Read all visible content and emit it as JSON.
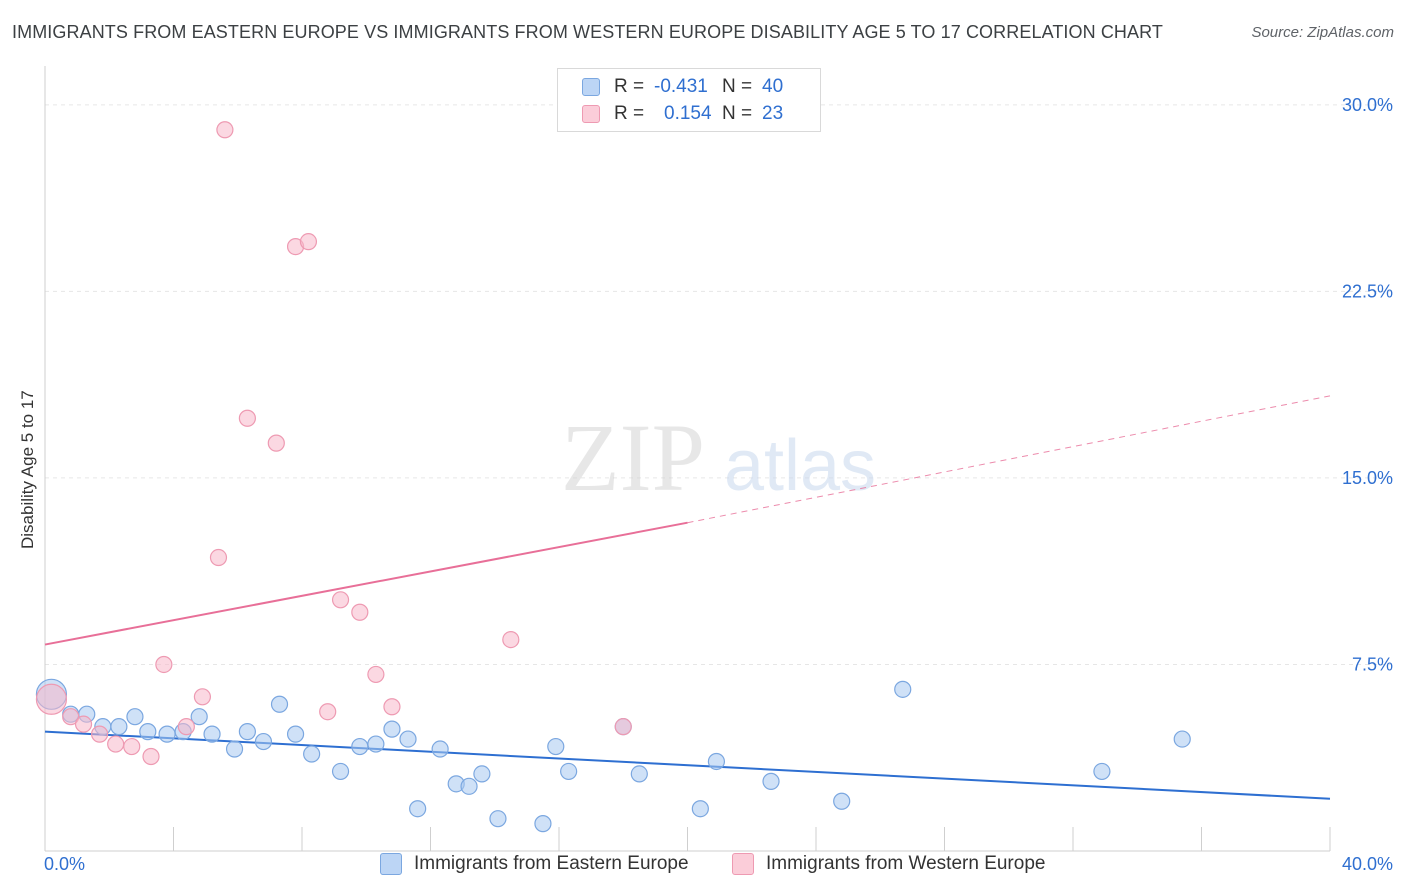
{
  "title": "IMMIGRANTS FROM EASTERN EUROPE VS IMMIGRANTS FROM WESTERN EUROPE DISABILITY AGE 5 TO 17 CORRELATION CHART",
  "source": "Source: ZipAtlas.com",
  "watermark": {
    "zip": "ZIP",
    "atlas": "atlas"
  },
  "legend": {
    "rows": [
      {
        "r_label": "R =",
        "r_value": "-0.431",
        "n_label": "N =",
        "n_value": "40"
      },
      {
        "r_label": "R =",
        "r_value": "0.154",
        "n_label": "N =",
        "n_value": "23"
      }
    ]
  },
  "colors": {
    "blue_fill": "#a8c8f0",
    "blue_stroke": "#7ba7e0",
    "blue_line": "#2e6fd1",
    "pink_fill": "#f7b8cb",
    "pink_stroke": "#ee9ab2",
    "pink_line": "#e86f98",
    "tick_label": "#2f6fd0",
    "grid": "#e6e6e6"
  },
  "chart_data": {
    "type": "scatter",
    "title": "IMMIGRANTS FROM EASTERN EUROPE VS IMMIGRANTS FROM WESTERN EUROPE DISABILITY AGE 5 TO 17 CORRELATION CHART",
    "xlabel": "",
    "ylabel": "Disability Age 5 to 17",
    "xlim": [
      0,
      40
    ],
    "ylim": [
      0,
      31
    ],
    "x_tick_labels": [
      {
        "value": 0,
        "label": "0.0%"
      },
      {
        "value": 40,
        "label": "40.0%"
      }
    ],
    "y_tick_labels": [
      {
        "value": 7.5,
        "label": "7.5%"
      },
      {
        "value": 15.0,
        "label": "15.0%"
      },
      {
        "value": 22.5,
        "label": "22.5%"
      },
      {
        "value": 30.0,
        "label": "30.0%"
      }
    ],
    "series": [
      {
        "name": "Immigrants from Eastern Europe",
        "color": "#a8c8f0",
        "points": [
          {
            "x": 0.2,
            "y": 6.3,
            "big": true
          },
          {
            "x": 0.8,
            "y": 5.5
          },
          {
            "x": 1.3,
            "y": 5.5
          },
          {
            "x": 1.8,
            "y": 5.0
          },
          {
            "x": 2.3,
            "y": 5.0
          },
          {
            "x": 2.8,
            "y": 5.4
          },
          {
            "x": 3.2,
            "y": 4.8
          },
          {
            "x": 3.8,
            "y": 4.7
          },
          {
            "x": 4.3,
            "y": 4.8
          },
          {
            "x": 4.8,
            "y": 5.4
          },
          {
            "x": 5.2,
            "y": 4.7
          },
          {
            "x": 5.9,
            "y": 4.1
          },
          {
            "x": 6.3,
            "y": 4.8
          },
          {
            "x": 6.8,
            "y": 4.4
          },
          {
            "x": 7.3,
            "y": 5.9
          },
          {
            "x": 7.8,
            "y": 4.7
          },
          {
            "x": 8.3,
            "y": 3.9
          },
          {
            "x": 9.2,
            "y": 3.2
          },
          {
            "x": 9.8,
            "y": 4.2
          },
          {
            "x": 10.3,
            "y": 4.3
          },
          {
            "x": 10.8,
            "y": 4.9
          },
          {
            "x": 11.3,
            "y": 4.5
          },
          {
            "x": 11.6,
            "y": 1.7
          },
          {
            "x": 12.3,
            "y": 4.1
          },
          {
            "x": 12.8,
            "y": 2.7
          },
          {
            "x": 13.2,
            "y": 2.6
          },
          {
            "x": 13.6,
            "y": 3.1
          },
          {
            "x": 14.1,
            "y": 1.3
          },
          {
            "x": 15.5,
            "y": 1.1
          },
          {
            "x": 15.9,
            "y": 4.2
          },
          {
            "x": 16.3,
            "y": 3.2
          },
          {
            "x": 18.0,
            "y": 5.0
          },
          {
            "x": 18.5,
            "y": 3.1
          },
          {
            "x": 20.4,
            "y": 1.7
          },
          {
            "x": 20.9,
            "y": 3.6
          },
          {
            "x": 22.6,
            "y": 2.8
          },
          {
            "x": 24.8,
            "y": 2.0
          },
          {
            "x": 26.7,
            "y": 6.5
          },
          {
            "x": 32.9,
            "y": 3.2
          },
          {
            "x": 35.4,
            "y": 4.5
          }
        ]
      },
      {
        "name": "Immigrants from Western Europe",
        "color": "#f7b8cb",
        "points": [
          {
            "x": 0.2,
            "y": 6.1,
            "big": true
          },
          {
            "x": 0.8,
            "y": 5.4
          },
          {
            "x": 1.2,
            "y": 5.1
          },
          {
            "x": 1.7,
            "y": 4.7
          },
          {
            "x": 2.2,
            "y": 4.3
          },
          {
            "x": 2.7,
            "y": 4.2
          },
          {
            "x": 3.3,
            "y": 3.8
          },
          {
            "x": 3.7,
            "y": 7.5
          },
          {
            "x": 4.4,
            "y": 5.0
          },
          {
            "x": 4.9,
            "y": 6.2
          },
          {
            "x": 5.4,
            "y": 11.8
          },
          {
            "x": 5.6,
            "y": 29.0
          },
          {
            "x": 6.3,
            "y": 17.4
          },
          {
            "x": 7.2,
            "y": 16.4
          },
          {
            "x": 7.8,
            "y": 24.3
          },
          {
            "x": 8.2,
            "y": 24.5
          },
          {
            "x": 8.8,
            "y": 5.6
          },
          {
            "x": 9.2,
            "y": 10.1
          },
          {
            "x": 9.8,
            "y": 9.6
          },
          {
            "x": 10.3,
            "y": 7.1
          },
          {
            "x": 10.8,
            "y": 5.8
          },
          {
            "x": 14.5,
            "y": 8.5
          },
          {
            "x": 18.0,
            "y": 5.0
          }
        ]
      }
    ],
    "trend_lines": [
      {
        "series": "Immigrants from Eastern Europe",
        "x0": 0,
        "y0": 4.8,
        "x1": 40,
        "y1": 2.1
      },
      {
        "series": "Immigrants from Western Europe",
        "x0": 0,
        "y0": 8.3,
        "x1": 20,
        "y1": 13.2,
        "dashed_to_x": 40,
        "dashed_to_y": 18.3
      }
    ]
  }
}
